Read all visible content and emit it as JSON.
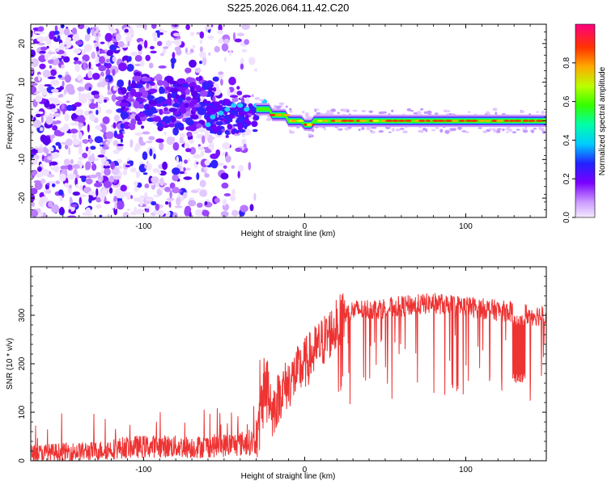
{
  "title": "S225.2026.064.11.42.C20",
  "chart_data": [
    {
      "type": "heatmap",
      "xlabel": "Height of straight line (km)",
      "ylabel": "Frequency (Hz)",
      "xlim": [
        -170,
        150
      ],
      "ylim": [
        -25,
        25
      ],
      "xticks": [
        -100,
        0,
        100
      ],
      "yticks": [
        -20,
        -10,
        0,
        10,
        20
      ],
      "colorbar": {
        "label": "Normalized spectral amplitude",
        "range": [
          0,
          1
        ],
        "ticks": [
          0.0,
          0.2,
          0.4,
          0.6,
          0.8
        ]
      }
    },
    {
      "type": "line",
      "xlabel": "Height of straight line (km)",
      "ylabel": "SNR (10 * v/v)",
      "xlim": [
        -170,
        150
      ],
      "ylim": [
        0,
        400
      ],
      "xticks": [
        -100,
        0,
        100
      ],
      "yticks": [
        0,
        100,
        200,
        300
      ],
      "series": [
        {
          "color": "#ee3333",
          "x": [
            -170,
            -150,
            -130,
            -110,
            -90,
            -70,
            -50,
            -40,
            -30,
            -28,
            -25,
            -22,
            -20,
            -15,
            -10,
            -5,
            0,
            10,
            20,
            25,
            30,
            50,
            80,
            100,
            120,
            135,
            140,
            150
          ],
          "y": [
            15,
            18,
            20,
            28,
            30,
            28,
            32,
            35,
            40,
            70,
            160,
            150,
            100,
            140,
            160,
            180,
            200,
            240,
            280,
            300,
            310,
            315,
            325,
            318,
            310,
            305,
            300,
            300
          ]
        }
      ]
    }
  ]
}
